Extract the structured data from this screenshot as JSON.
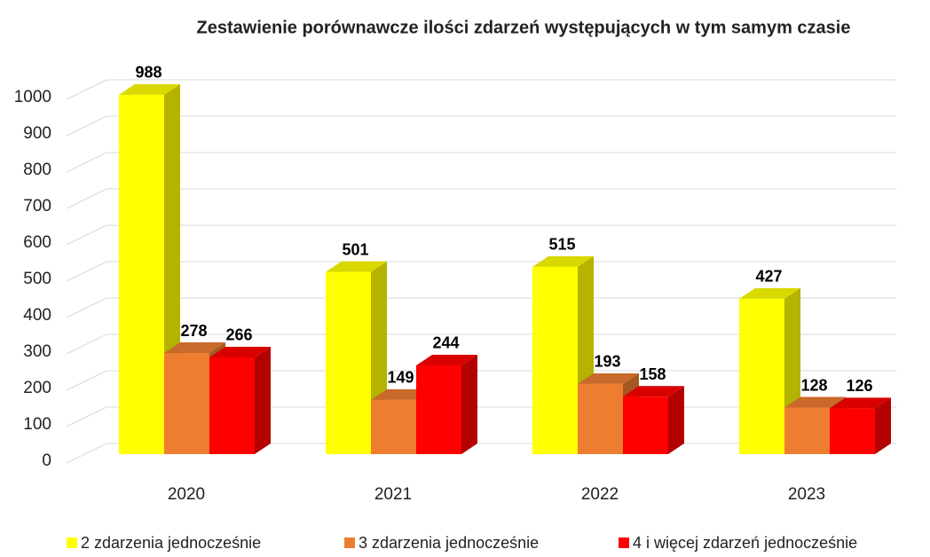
{
  "chart_data": {
    "type": "bar3d",
    "title": "Zestawienie porównawcze ilości zdarzeń występujących w tym samym czasie",
    "categories": [
      "2020",
      "2021",
      "2022",
      "2023"
    ],
    "series": [
      {
        "name": "2 zdarzenia jednocześnie",
        "color": "#ffff00",
        "values": [
          988,
          501,
          515,
          427
        ]
      },
      {
        "name": "3 zdarzenia jednocześnie",
        "color": "#ed7d31",
        "values": [
          278,
          149,
          193,
          128
        ]
      },
      {
        "name": "4 i więcej zdarzeń jednocześnie",
        "color": "#ff0000",
        "values": [
          266,
          244,
          158,
          126
        ]
      }
    ],
    "ylim": [
      0,
      1000
    ],
    "yticks": [
      0,
      100,
      200,
      300,
      400,
      500,
      600,
      700,
      800,
      900,
      1000
    ],
    "grid": true,
    "legend": "bottom",
    "data_labels": true
  }
}
